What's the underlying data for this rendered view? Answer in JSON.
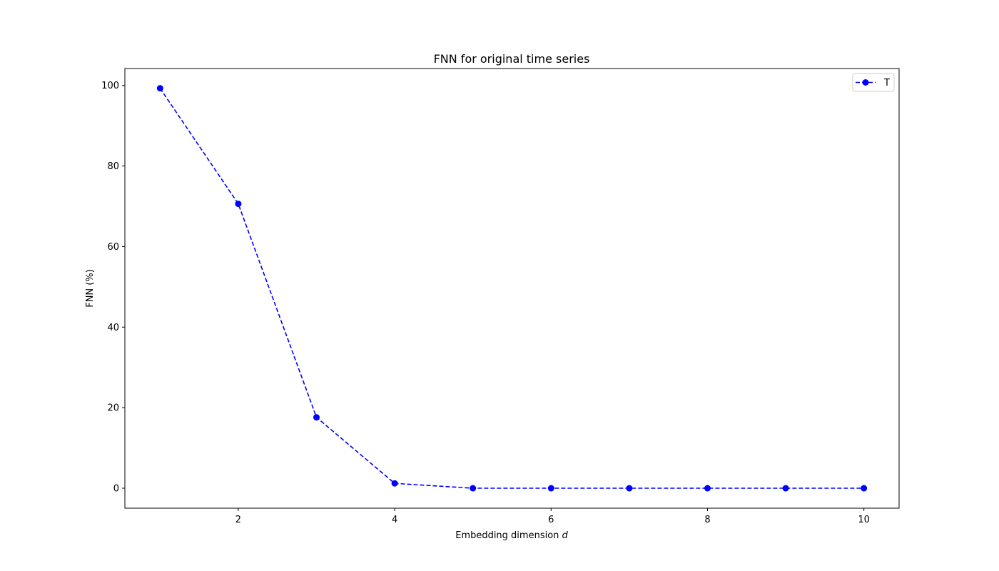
{
  "chart_data": {
    "type": "line",
    "title": "FNN for original time series",
    "xlabel": "Embedding dimension",
    "xlabel_var": "d",
    "ylabel": "FNN (%)",
    "xlim": [
      0.55,
      10.45
    ],
    "ylim": [
      -4.96,
      104.2
    ],
    "x_ticks": [
      2,
      4,
      6,
      8,
      10
    ],
    "y_ticks": [
      0,
      20,
      40,
      60,
      80,
      100
    ],
    "grid": false,
    "legend_position": "top-right",
    "series": [
      {
        "name": "T",
        "color": "#0000ff",
        "line_style": "dashed",
        "marker": "circle",
        "x": [
          1,
          2,
          3,
          4,
          5,
          6,
          7,
          8,
          9,
          10
        ],
        "y": [
          99.3,
          70.6,
          17.6,
          1.2,
          0,
          0,
          0,
          0,
          0,
          0
        ]
      }
    ]
  }
}
